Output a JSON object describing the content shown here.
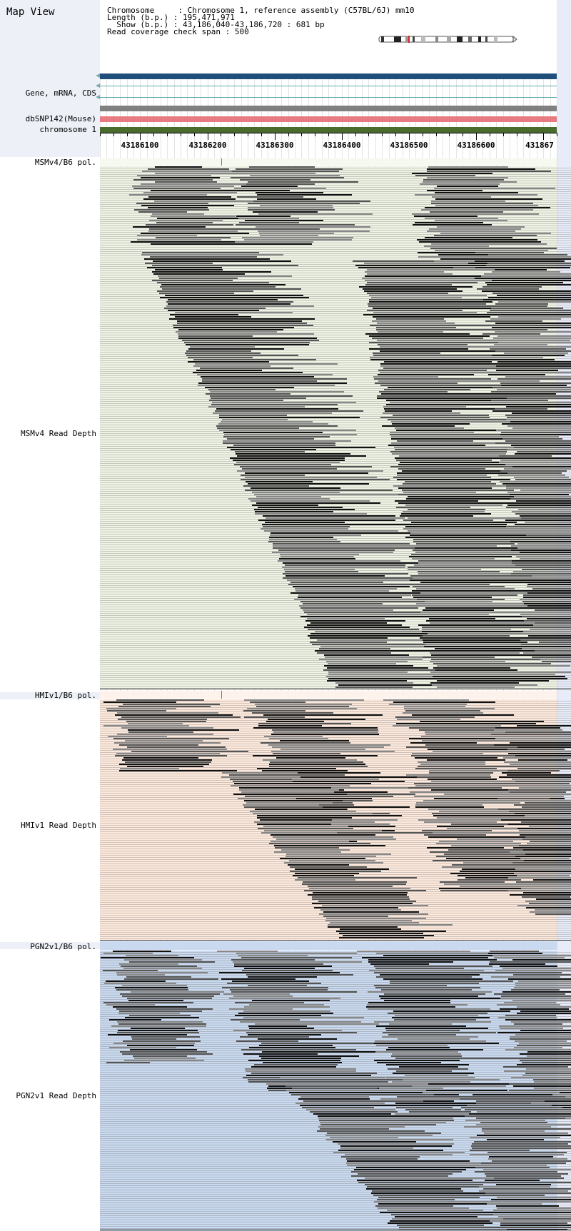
{
  "title": "Map View",
  "info": {
    "chromosome_label": "Chromosome",
    "chromosome_value": "Chromosome 1, reference assembly (C57BL/6J) mm10",
    "length_label": "Length (b.p.)",
    "length_value": "195,471,971",
    "show_label": "Show (b.p.)",
    "show_value": "43,186,040-43,186,720 : 681 bp",
    "span_label": "Read coverage check span",
    "span_value": "500"
  },
  "tracks": {
    "gene": "Gene, mRNA, CDS",
    "dbsnp": "dbSNP142(Mouse)",
    "chromosome": "chromosome 1",
    "msm_pol": "MSMv4/B6 pol.",
    "msm_depth": "MSMv4 Read Depth",
    "hmi_pol": "HMIv1/B6 pol.",
    "hmi_depth": "HMIv1 Read Depth",
    "pgn_pol": "PGN2v1/B6 pol.",
    "pgn_depth": "PGN2v1 Read Depth"
  },
  "ruler": {
    "start": 43186040,
    "end": 43186720,
    "labels": [
      "43186100",
      "43186200",
      "43186300",
      "43186400",
      "43186500",
      "43186600",
      "431867"
    ]
  },
  "colors": {
    "left_panel": "#eef0f8",
    "gene_bar": "#1f4e7a",
    "gene_line": "#5aa9b0",
    "gray_bar": "#808080",
    "dbsnp_bar": "#e87a82",
    "chromosome_bar": "#4a6b2e",
    "msm_bg": "#eef3e4",
    "hmi_bg": "#fde9dc",
    "pgn_bg": "#c9d9ef",
    "snp_mark": "#e05050",
    "read_dark": "#111111",
    "read_mid": "#555555",
    "read_light": "#888888"
  },
  "icons": {
    "ideogram": "chromosome-ideogram"
  }
}
